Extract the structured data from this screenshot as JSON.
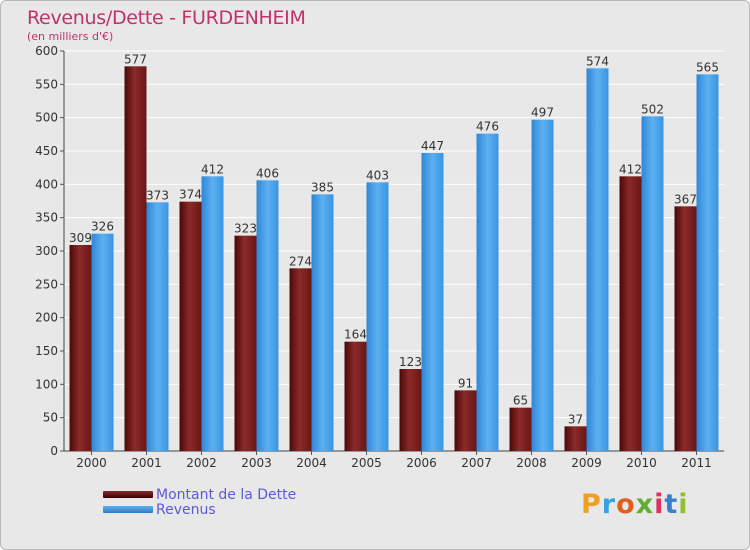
{
  "title": "Revenus/Dette - FURDENHEIM",
  "subtitle": "(en milliers d'€)",
  "logo_text": "Proxiti",
  "colors": {
    "debt": "#7a1f1f",
    "revenue": "#3f9ae6",
    "title": "#c0326a",
    "legend_text": "#5a5ad8"
  },
  "legend": {
    "debt_label": "Montant de la Dette",
    "revenue_label": "Revenus"
  },
  "chart_data": {
    "type": "bar",
    "title": "Revenus/Dette - FURDENHEIM",
    "ylabel": "(en milliers d'€)",
    "xlabel": "",
    "ylim": [
      0,
      600
    ],
    "yticks": [
      0,
      50,
      100,
      150,
      200,
      250,
      300,
      350,
      400,
      450,
      500,
      550,
      600
    ],
    "categories": [
      "2000",
      "2001",
      "2002",
      "2003",
      "2004",
      "2005",
      "2006",
      "2007",
      "2008",
      "2009",
      "2010",
      "2011"
    ],
    "series": [
      {
        "name": "Montant de la Dette",
        "values": [
          309,
          577,
          374,
          323,
          274,
          164,
          123,
          91,
          65,
          37,
          412,
          367
        ]
      },
      {
        "name": "Revenus",
        "values": [
          326,
          373,
          412,
          406,
          385,
          403,
          447,
          476,
          497,
          574,
          502,
          565
        ]
      }
    ],
    "grid": true,
    "legend_position": "bottom-left"
  }
}
